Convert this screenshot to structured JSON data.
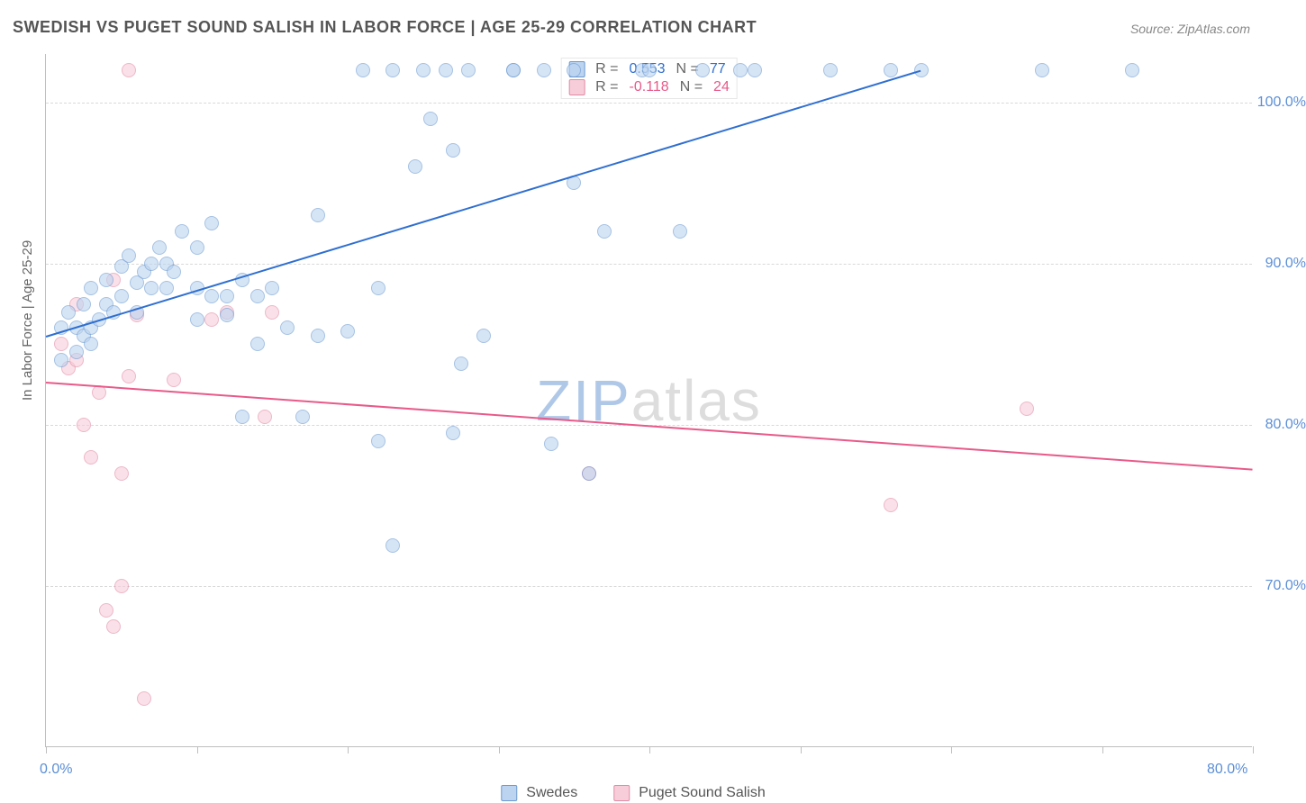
{
  "title": "SWEDISH VS PUGET SOUND SALISH IN LABOR FORCE | AGE 25-29 CORRELATION CHART",
  "source": "Source: ZipAtlas.com",
  "watermark_a": "ZIP",
  "watermark_b": "atlas",
  "y_axis_title": "In Labor Force | Age 25-29",
  "chart": {
    "type": "scatter",
    "xlim": [
      0,
      80
    ],
    "ylim": [
      60,
      103
    ],
    "xtick_positions": [
      0,
      10,
      20,
      30,
      40,
      50,
      60,
      70,
      80
    ],
    "xtick_labels": {
      "0": "0.0%",
      "80": "80.0%"
    },
    "ytick_positions": [
      70,
      80,
      90,
      100
    ],
    "ytick_labels": {
      "70": "70.0%",
      "80": "80.0%",
      "90": "90.0%",
      "100": "100.0%"
    },
    "grid_color": "#d9d9d9",
    "axis_color": "#bfbfbf",
    "background_color": "#ffffff",
    "tick_label_color": "#5b8fd6",
    "tick_label_fontsize": 16,
    "point_radius": 8,
    "series": {
      "swedes": {
        "label": "Swedes",
        "fill": "#bcd4f0",
        "stroke": "#6b9ad1",
        "fill_opacity": 0.6,
        "trend": {
          "x1": 0,
          "y1": 85.5,
          "x2": 58,
          "y2": 102,
          "color": "#2f6fd0",
          "width": 2
        },
        "stats": {
          "R_label": "R =",
          "R": "0.553",
          "N_label": "N =",
          "N": "77"
        },
        "points": [
          [
            1,
            84
          ],
          [
            1,
            86
          ],
          [
            1.5,
            87
          ],
          [
            2,
            84.5
          ],
          [
            2,
            86
          ],
          [
            2.5,
            87.5
          ],
          [
            2.5,
            85.5
          ],
          [
            3,
            86
          ],
          [
            3,
            88.5
          ],
          [
            3,
            85
          ],
          [
            3.5,
            86.5
          ],
          [
            4,
            87.5
          ],
          [
            4,
            89
          ],
          [
            4.5,
            87
          ],
          [
            5,
            89.8
          ],
          [
            5,
            88
          ],
          [
            5.5,
            90.5
          ],
          [
            6,
            88.8
          ],
          [
            6,
            87
          ],
          [
            6.5,
            89.5
          ],
          [
            7,
            90
          ],
          [
            7,
            88.5
          ],
          [
            7.5,
            91
          ],
          [
            8,
            90
          ],
          [
            8,
            88.5
          ],
          [
            8.5,
            89.5
          ],
          [
            9,
            92
          ],
          [
            10,
            88.5
          ],
          [
            10,
            91
          ],
          [
            10,
            86.5
          ],
          [
            11,
            88
          ],
          [
            11,
            92.5
          ],
          [
            12,
            86.8
          ],
          [
            12,
            88
          ],
          [
            13,
            80.5
          ],
          [
            13,
            89
          ],
          [
            14,
            85
          ],
          [
            14,
            88
          ],
          [
            15,
            88.5
          ],
          [
            16,
            86
          ],
          [
            17,
            80.5
          ],
          [
            18,
            85.5
          ],
          [
            18,
            93
          ],
          [
            20,
            85.8
          ],
          [
            21,
            102
          ],
          [
            22,
            88.5
          ],
          [
            22,
            79
          ],
          [
            23,
            72.5
          ],
          [
            23,
            102
          ],
          [
            24.5,
            96
          ],
          [
            25,
            102
          ],
          [
            25.5,
            99
          ],
          [
            26.5,
            102
          ],
          [
            27,
            97
          ],
          [
            27,
            79.5
          ],
          [
            27.5,
            83.8
          ],
          [
            28,
            102
          ],
          [
            29,
            85.5
          ],
          [
            31,
            102
          ],
          [
            31,
            102
          ],
          [
            33,
            102
          ],
          [
            33.5,
            78.8
          ],
          [
            35,
            95
          ],
          [
            35,
            102
          ],
          [
            36,
            77
          ],
          [
            37,
            92
          ],
          [
            39.5,
            102
          ],
          [
            40,
            102
          ],
          [
            42,
            92
          ],
          [
            43.5,
            102
          ],
          [
            46,
            102
          ],
          [
            47,
            102
          ],
          [
            52,
            102
          ],
          [
            56,
            102
          ],
          [
            58,
            102
          ],
          [
            66,
            102
          ],
          [
            72,
            102
          ]
        ]
      },
      "salish": {
        "label": "Puget Sound Salish",
        "fill": "#f7cdd9",
        "stroke": "#e28aa6",
        "fill_opacity": 0.6,
        "trend": {
          "x1": 0,
          "y1": 82.7,
          "x2": 80,
          "y2": 77.3,
          "color": "#e85a8a",
          "width": 2
        },
        "stats": {
          "R_label": "R =",
          "R": "-0.118",
          "N_label": "N =",
          "N": "24"
        },
        "points": [
          [
            1,
            85
          ],
          [
            1.5,
            83.5
          ],
          [
            2,
            87.5
          ],
          [
            2,
            84
          ],
          [
            2.5,
            80
          ],
          [
            3,
            78
          ],
          [
            3.5,
            82
          ],
          [
            4,
            68.5
          ],
          [
            4.5,
            67.5
          ],
          [
            4.5,
            89
          ],
          [
            5,
            70
          ],
          [
            5,
            77
          ],
          [
            5.5,
            83
          ],
          [
            5.5,
            102
          ],
          [
            6,
            86.8
          ],
          [
            6.5,
            63
          ],
          [
            8.5,
            82.8
          ],
          [
            11,
            86.5
          ],
          [
            12,
            87
          ],
          [
            14.5,
            80.5
          ],
          [
            15,
            87
          ],
          [
            36,
            77
          ],
          [
            56,
            75
          ],
          [
            65,
            81
          ]
        ]
      }
    }
  },
  "legend": {
    "swedes": "Swedes",
    "salish": "Puget Sound Salish"
  }
}
